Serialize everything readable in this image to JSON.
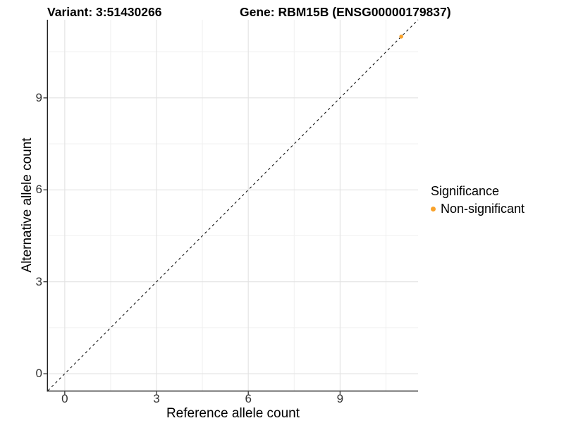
{
  "chart_data": {
    "type": "scatter",
    "titles": {
      "variant": "Variant: 3:51430266",
      "gene": "Gene: RBM15B (ENSG00000179837)"
    },
    "xlabel": "Reference allele count",
    "ylabel": "Alternative allele count",
    "xlim": [
      -0.55,
      11.55
    ],
    "ylim": [
      -0.55,
      11.55
    ],
    "xticks": [
      0,
      3,
      6,
      9
    ],
    "yticks": [
      0,
      3,
      6,
      9
    ],
    "minor_xticks": [
      1.5,
      4.5,
      7.5,
      10.5
    ],
    "minor_yticks": [
      1.5,
      4.5,
      7.5,
      10.5
    ],
    "grid": "major-and-minor",
    "identity_line": {
      "style": "dashed",
      "slope": 1,
      "intercept": 0
    },
    "series": [
      {
        "name": "Non-significant",
        "color": "#F9A22B",
        "points": [
          {
            "x": 11,
            "y": 11
          }
        ]
      }
    ],
    "legend": {
      "title": "Significance",
      "position": "right",
      "items": [
        {
          "label": "Non-significant",
          "color": "#F9A22B",
          "marker": "circle"
        }
      ]
    }
  },
  "colors": {
    "point": "#F9A22B",
    "grid_major": "#E2E2E2",
    "grid_minor": "#F0F0F0",
    "axis_line": "#222222",
    "tick_mark": "#333333",
    "identity_line": "#111111"
  }
}
